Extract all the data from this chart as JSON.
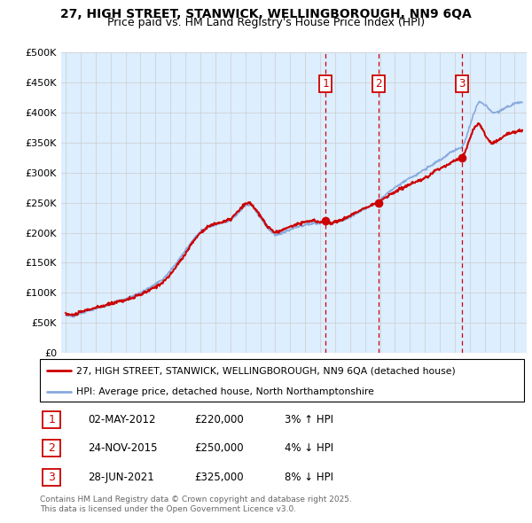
{
  "title1": "27, HIGH STREET, STANWICK, WELLINGBOROUGH, NN9 6QA",
  "title2": "Price paid vs. HM Land Registry's House Price Index (HPI)",
  "ylabel_ticks": [
    "£0",
    "£50K",
    "£100K",
    "£150K",
    "£200K",
    "£250K",
    "£300K",
    "£350K",
    "£400K",
    "£450K",
    "£500K"
  ],
  "ytick_vals": [
    0,
    50000,
    100000,
    150000,
    200000,
    250000,
    300000,
    350000,
    400000,
    450000,
    500000
  ],
  "ylim": [
    0,
    500000
  ],
  "sale_dates": [
    2012.35,
    2015.9,
    2021.49
  ],
  "sale_labels": [
    "1",
    "2",
    "3"
  ],
  "sale_prices": [
    220000,
    250000,
    325000
  ],
  "legend_line1": "27, HIGH STREET, STANWICK, WELLINGBOROUGH, NN9 6QA (detached house)",
  "legend_line2": "HPI: Average price, detached house, North Northamptonshire",
  "transactions": [
    {
      "num": "1",
      "date": "02-MAY-2012",
      "price": "£220,000",
      "pct": "3%",
      "dir": "↑",
      "rel": "HPI"
    },
    {
      "num": "2",
      "date": "24-NOV-2015",
      "price": "£250,000",
      "pct": "4%",
      "dir": "↓",
      "rel": "HPI"
    },
    {
      "num": "3",
      "date": "28-JUN-2021",
      "price": "£325,000",
      "pct": "8%",
      "dir": "↓",
      "rel": "HPI"
    }
  ],
  "footnote1": "Contains HM Land Registry data © Crown copyright and database right 2025.",
  "footnote2": "This data is licensed under the Open Government Licence v3.0.",
  "red_color": "#cc0000",
  "blue_color": "#88aadd",
  "bg_color": "#ddeeff",
  "plot_bg": "#ffffff"
}
